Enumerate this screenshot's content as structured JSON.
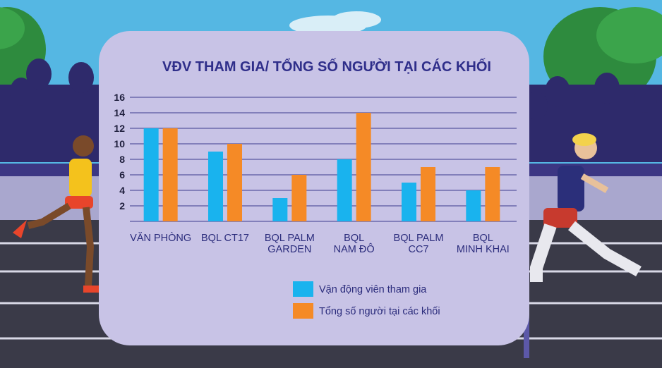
{
  "chart_data": {
    "type": "bar",
    "title": "VĐV THAM GIA/ TỔNG SỐ NGƯỜI TẠI CÁC KHỐI",
    "xlabel": "",
    "ylabel": "",
    "ylim": [
      0,
      16
    ],
    "yticks": [
      2,
      4,
      6,
      8,
      10,
      12,
      14,
      16
    ],
    "grid": true,
    "legend_position": "bottom",
    "categories": [
      [
        "VĂN PHÒNG"
      ],
      [
        "BQL CT17"
      ],
      [
        "BQL PALM",
        "GARDEN"
      ],
      [
        "BQL",
        "NAM ĐÔ"
      ],
      [
        "BQL PALM",
        "CC7"
      ],
      [
        "BQL",
        "MINH KHAI"
      ]
    ],
    "series": [
      {
        "name": "Vận động viên tham gia",
        "color": "#19B3EE",
        "values": [
          12,
          9,
          3,
          8,
          5,
          4
        ]
      },
      {
        "name": "Tổng số người tại các khối",
        "color": "#F58A26",
        "values": [
          12,
          10,
          6,
          14,
          7,
          7
        ]
      }
    ],
    "colors": {
      "panel": "#C8C3E6",
      "title": "#2F2E8A",
      "axis_text": "#1E1E3C",
      "category_text": "#2B2C7C",
      "gridline": "#3B3B8F"
    }
  }
}
